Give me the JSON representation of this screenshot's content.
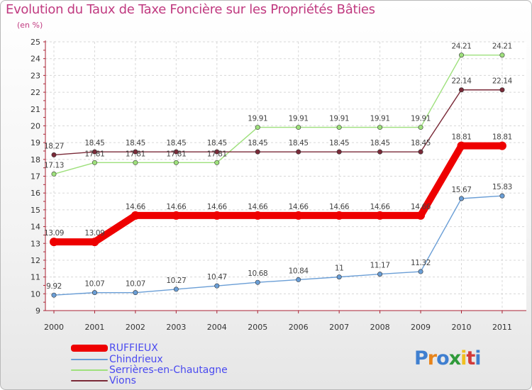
{
  "title": "Evolution du Taux de Taxe Foncière sur les Propriétés Bâties",
  "unit_label": "(en %)",
  "chart_data": {
    "type": "line",
    "title": "Evolution du Taux de Taxe Foncière sur les Propriétés Bâties",
    "ylabel": "(en %)",
    "xlabel": "",
    "x": [
      "2000",
      "2001",
      "2002",
      "2003",
      "2004",
      "2005",
      "2006",
      "2007",
      "2008",
      "2009",
      "2010",
      "2011"
    ],
    "ylim": [
      9,
      25
    ],
    "yticks": [
      "9",
      "10",
      "11",
      "12",
      "13",
      "14",
      "15",
      "16",
      "17",
      "18",
      "19",
      "20",
      "21",
      "22",
      "23",
      "24",
      "25"
    ],
    "series": [
      {
        "name": "RUFFIEUX",
        "color": "#ee0000",
        "values": [
          13.09,
          13.09,
          14.66,
          14.66,
          14.66,
          14.66,
          14.66,
          14.66,
          14.66,
          14.66,
          18.81,
          18.81
        ],
        "labels": [
          "13.09",
          "13.09",
          "14.66",
          "14.66",
          "14.66",
          "14.66",
          "14.66",
          "14.66",
          "14.66",
          "14.66",
          "18.81",
          "18.81"
        ]
      },
      {
        "name": "Chindrieux",
        "color": "#6a9ed6",
        "values": [
          9.92,
          10.07,
          10.07,
          10.27,
          10.47,
          10.68,
          10.84,
          11,
          11.17,
          11.32,
          15.67,
          15.83
        ],
        "labels": [
          "9.92",
          "10.07",
          "10.07",
          "10.27",
          "10.47",
          "10.68",
          "10.84",
          "11",
          "11.17",
          "11.32",
          "15.67",
          "15.83"
        ]
      },
      {
        "name": "Serrières-en-Chautagne",
        "color": "#9ee07c",
        "values": [
          17.13,
          17.81,
          17.81,
          17.81,
          17.81,
          19.91,
          19.91,
          19.91,
          19.91,
          19.91,
          24.21,
          24.21
        ],
        "labels": [
          "17.13",
          "17.81",
          "17.81",
          "17.81",
          "17.81",
          "19.91",
          "19.91",
          "19.91",
          "19.91",
          "19.91",
          "24.21",
          "24.21"
        ]
      },
      {
        "name": "Vions",
        "color": "#7a2a38",
        "values": [
          18.27,
          18.45,
          18.45,
          18.45,
          18.45,
          18.45,
          18.45,
          18.45,
          18.45,
          18.45,
          22.14,
          22.14
        ],
        "labels": [
          "18.27",
          "18.45",
          "18.45",
          "18.45",
          "18.45",
          "18.45",
          "18.45",
          "18.45",
          "18.45",
          "18.45",
          "22.14",
          "22.14"
        ]
      }
    ]
  },
  "logo": {
    "text": "Proxiti"
  }
}
